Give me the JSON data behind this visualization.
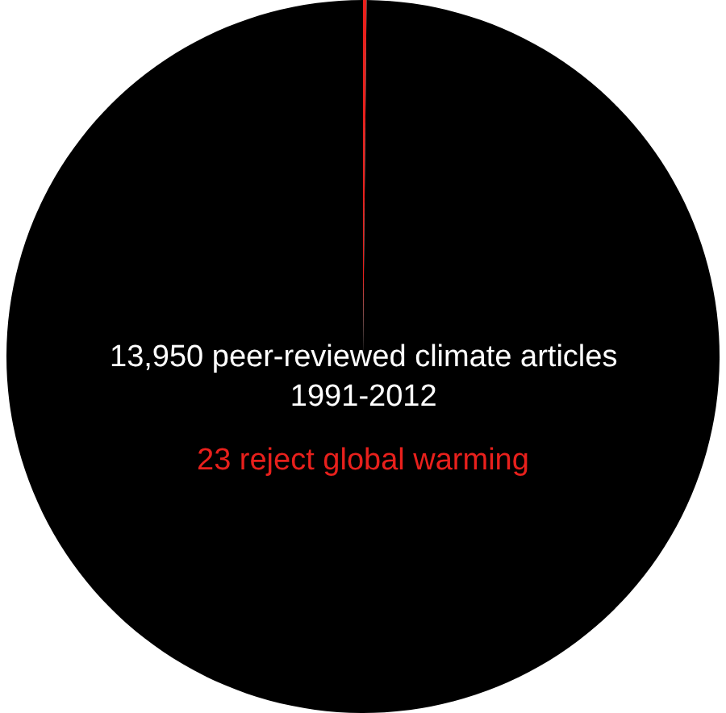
{
  "chart_data": {
    "type": "pie",
    "categories": [
      null,
      null
    ],
    "values": [
      0.16,
      99.84
    ],
    "colors": [
      "#e8201c",
      "#000000"
    ],
    "annotations": [
      "13,950 peer-reviewed climate articles\n1991-2012",
      "23 reject global warming"
    ]
  }
}
